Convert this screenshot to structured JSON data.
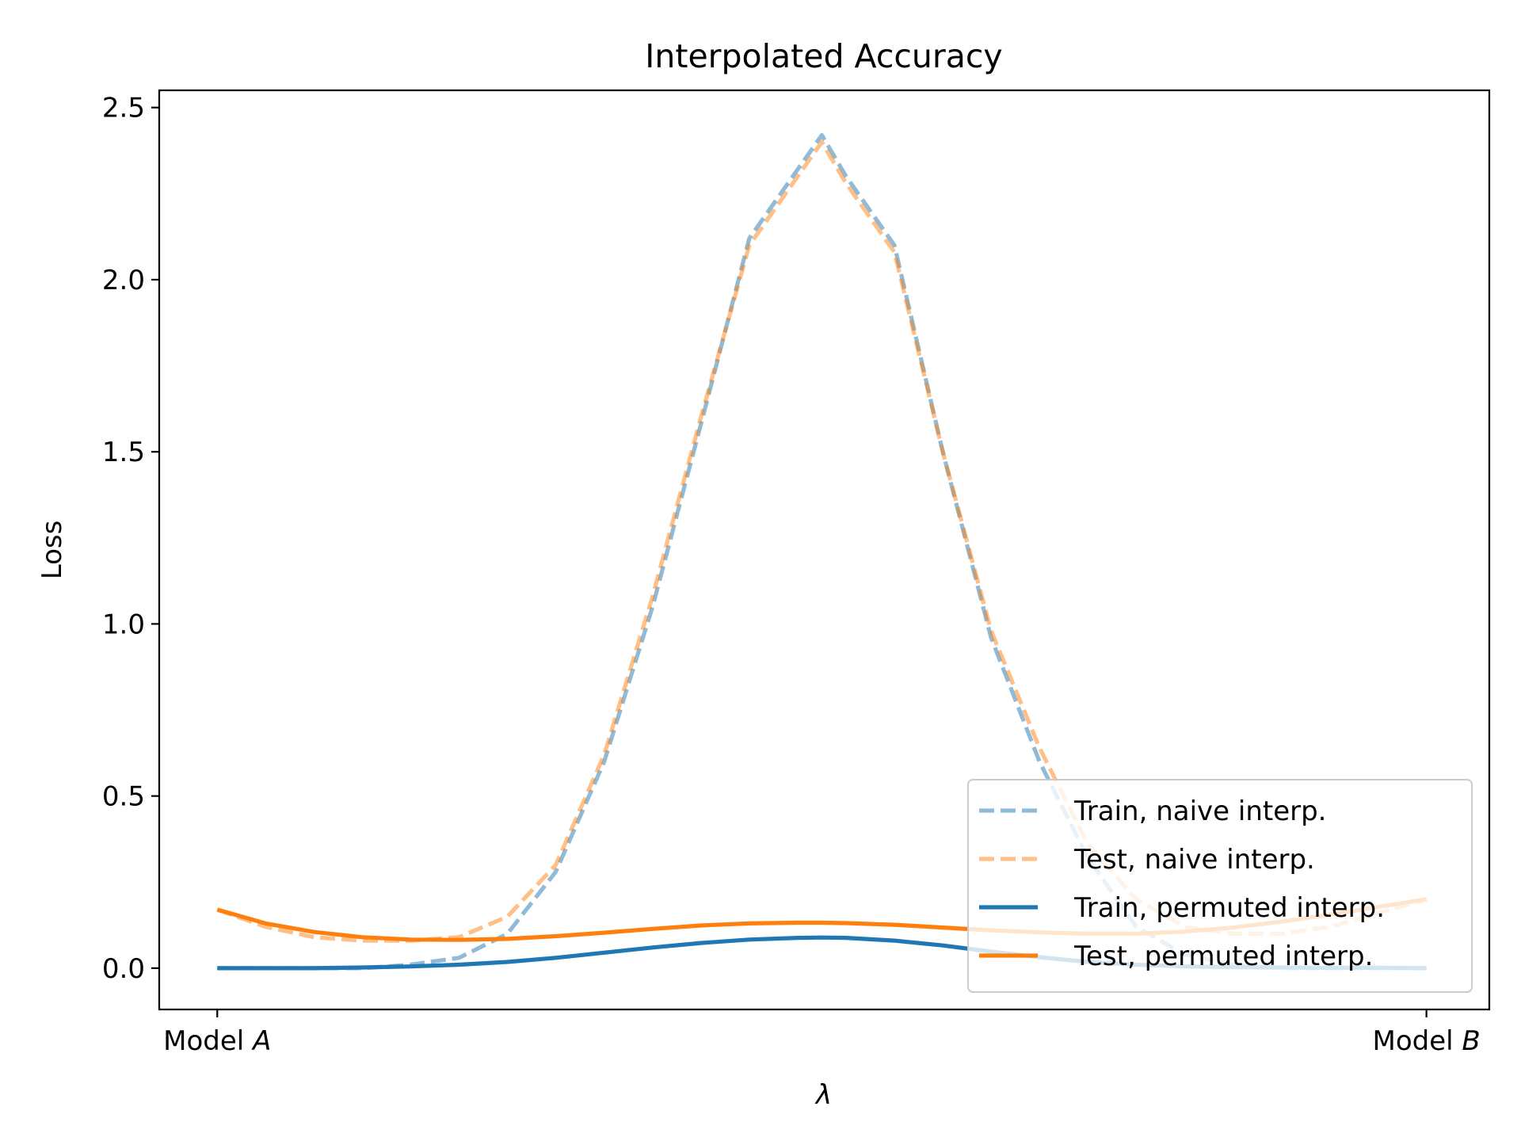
{
  "chart_data": {
    "type": "line",
    "title": "Interpolated Accuracy",
    "xlabel": "λ",
    "ylabel": "Loss",
    "xlim": [
      -0.048,
      1.052
    ],
    "ylim": [
      -0.12,
      2.55
    ],
    "x_ticks": [
      {
        "value": 0,
        "label": "Model A",
        "prefix": "Model ",
        "italic": "A"
      },
      {
        "value": 1,
        "label": "Model B",
        "prefix": "Model ",
        "italic": "B"
      }
    ],
    "y_ticks": [
      0.0,
      0.5,
      1.0,
      1.5,
      2.0,
      2.5
    ],
    "y_tick_labels": [
      "0.0",
      "0.5",
      "1.0",
      "1.5",
      "2.0",
      "2.5"
    ],
    "grid": false,
    "legend_position": "lower right",
    "x": [
      0.0,
      0.04,
      0.08,
      0.12,
      0.16,
      0.2,
      0.24,
      0.28,
      0.32,
      0.36,
      0.4,
      0.44,
      0.48,
      0.5,
      0.52,
      0.56,
      0.6,
      0.64,
      0.68,
      0.72,
      0.76,
      0.8,
      0.84,
      0.88,
      0.92,
      0.96,
      1.0
    ],
    "series": [
      {
        "name": "Train, naive interp.",
        "color": "#1f77b4",
        "opacity": 0.5,
        "style": "dashed",
        "values": [
          0.0,
          0.0,
          0.0,
          0.0,
          0.01,
          0.03,
          0.1,
          0.28,
          0.6,
          1.05,
          1.58,
          2.12,
          2.32,
          2.42,
          2.3,
          2.1,
          1.5,
          0.96,
          0.6,
          0.32,
          0.12,
          0.04,
          0.01,
          0.0,
          0.0,
          0.0,
          0.0
        ]
      },
      {
        "name": "Test, naive interp.",
        "color": "#ff7f0e",
        "opacity": 0.5,
        "style": "dashed",
        "values": [
          0.17,
          0.12,
          0.09,
          0.08,
          0.08,
          0.09,
          0.15,
          0.3,
          0.62,
          1.08,
          1.6,
          2.1,
          2.3,
          2.4,
          2.28,
          2.08,
          1.5,
          0.98,
          0.64,
          0.36,
          0.2,
          0.12,
          0.1,
          0.1,
          0.12,
          0.16,
          0.2
        ]
      },
      {
        "name": "Train, permuted interp.",
        "color": "#1f77b4",
        "opacity": 1.0,
        "style": "solid",
        "values": [
          0.0,
          0.0,
          0.0,
          0.002,
          0.005,
          0.01,
          0.018,
          0.03,
          0.045,
          0.06,
          0.073,
          0.083,
          0.088,
          0.089,
          0.088,
          0.08,
          0.066,
          0.048,
          0.032,
          0.018,
          0.01,
          0.005,
          0.003,
          0.002,
          0.001,
          0.001,
          0.0
        ]
      },
      {
        "name": "Test, permuted interp.",
        "color": "#ff7f0e",
        "opacity": 1.0,
        "style": "solid",
        "values": [
          0.17,
          0.13,
          0.105,
          0.09,
          0.083,
          0.082,
          0.085,
          0.093,
          0.103,
          0.114,
          0.124,
          0.13,
          0.132,
          0.132,
          0.131,
          0.126,
          0.118,
          0.11,
          0.104,
          0.1,
          0.1,
          0.106,
          0.118,
          0.135,
          0.155,
          0.178,
          0.2
        ]
      }
    ]
  }
}
